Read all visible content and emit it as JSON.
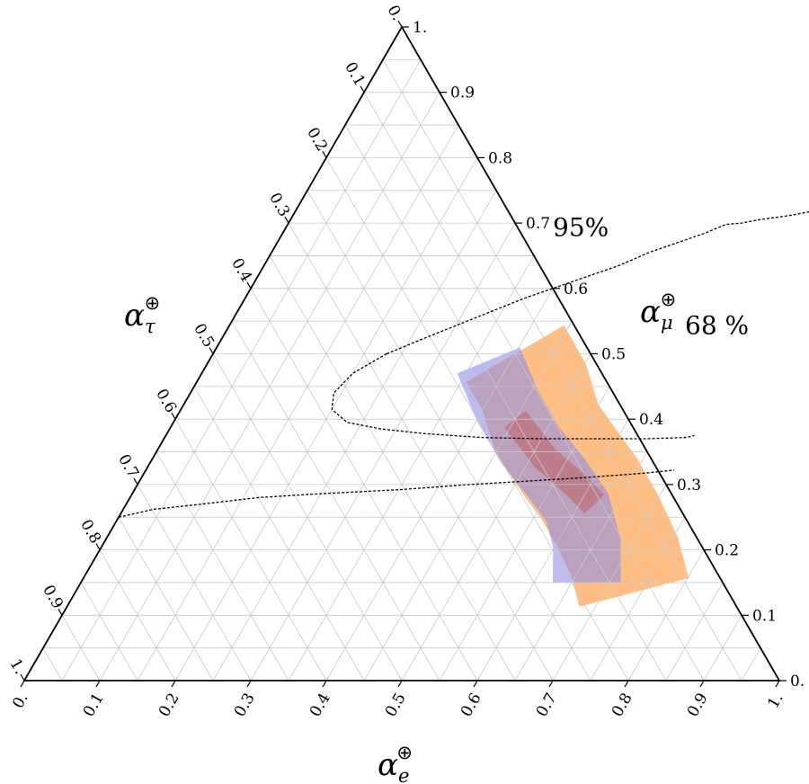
{
  "chart_data": {
    "type": "ternary-heatmap",
    "axes": {
      "bottom": {
        "name": "α",
        "sub": "e",
        "sup": "⊕"
      },
      "right": {
        "name": "α",
        "sub": "μ",
        "sup": "⊕"
      },
      "left": {
        "name": "α",
        "sub": "τ",
        "sup": "⊕"
      }
    },
    "ticks": [
      "0.",
      "0.1",
      "0.2",
      "0.3",
      "0.4",
      "0.5",
      "0.6",
      "0.7",
      "0.8",
      "0.9",
      "1."
    ],
    "tick_values": [
      0,
      0.1,
      0.2,
      0.3,
      0.4,
      0.5,
      0.6,
      0.7,
      0.8,
      0.9,
      1
    ],
    "grid": true,
    "grid_divisions": 20,
    "contours": [
      {
        "label": "95%",
        "points": [
          [
            0.0,
            0.25
          ],
          [
            0.04,
            0.262
          ],
          [
            0.1,
            0.27
          ],
          [
            0.17,
            0.28
          ],
          [
            0.25,
            0.286
          ],
          [
            0.35,
            0.292
          ],
          [
            0.44,
            0.3
          ],
          [
            0.51,
            0.305
          ],
          [
            0.58,
            0.31
          ],
          [
            0.66,
            0.317
          ],
          [
            0.7,
            0.322
          ]
        ]
      },
      {
        "label": "68 %",
        "points": [
          [
            0.23,
            0.5
          ],
          [
            0.27,
            0.525
          ],
          [
            0.32,
            0.555
          ],
          [
            0.37,
            0.585
          ],
          [
            0.42,
            0.61
          ],
          [
            0.47,
            0.635
          ],
          [
            0.5,
            0.655
          ],
          [
            0.53,
            0.67
          ],
          [
            0.56,
            0.685
          ],
          [
            0.58,
            0.698
          ],
          [
            0.6,
            0.7
          ],
          [
            0.62,
            0.705
          ],
          [
            0.66,
            0.712
          ],
          [
            0.7,
            0.722
          ],
          [
            0.74,
            0.73
          ]
        ],
        "lower_points": [
          [
            0.23,
            0.5
          ],
          [
            0.2,
            0.47
          ],
          [
            0.19,
            0.44
          ],
          [
            0.2,
            0.415
          ],
          [
            0.23,
            0.395
          ],
          [
            0.28,
            0.385
          ],
          [
            0.34,
            0.378
          ],
          [
            0.42,
            0.372
          ],
          [
            0.5,
            0.37
          ],
          [
            0.58,
            0.37
          ],
          [
            0.64,
            0.37
          ],
          [
            0.69,
            0.372
          ],
          [
            0.7,
            0.375
          ]
        ]
      }
    ],
    "contour_labels": [
      {
        "text": "95%",
        "e": 0.36,
        "mu": 0.68
      },
      {
        "text": "68 %",
        "e": 0.61,
        "mu": 0.53
      }
    ],
    "regions": [
      {
        "color": "#ffb36e",
        "centerline": [
          [
            0.4,
            0.5
          ],
          [
            0.45,
            0.45
          ],
          [
            0.5,
            0.385
          ],
          [
            0.56,
            0.33
          ],
          [
            0.6,
            0.295
          ],
          [
            0.65,
            0.245
          ],
          [
            0.7,
            0.19
          ],
          [
            0.74,
            0.135
          ]
        ],
        "halfwidth": 0.075
      },
      {
        "color": "#8f8ee6",
        "centerline": [
          [
            0.37,
            0.49
          ],
          [
            0.43,
            0.42
          ],
          [
            0.49,
            0.36
          ],
          [
            0.55,
            0.31
          ],
          [
            0.6,
            0.265
          ],
          [
            0.64,
            0.21
          ],
          [
            0.67,
            0.15
          ]
        ],
        "halfwidth": 0.045
      },
      {
        "color": "#c0392b",
        "centerline": [
          [
            0.45,
            0.4
          ],
          [
            0.52,
            0.34
          ],
          [
            0.58,
            0.3
          ],
          [
            0.62,
            0.27
          ]
        ],
        "halfwidth": 0.018
      }
    ],
    "colors": {
      "frame": "#000000",
      "grid": "#c8c8c8",
      "contour": "#000000"
    }
  }
}
